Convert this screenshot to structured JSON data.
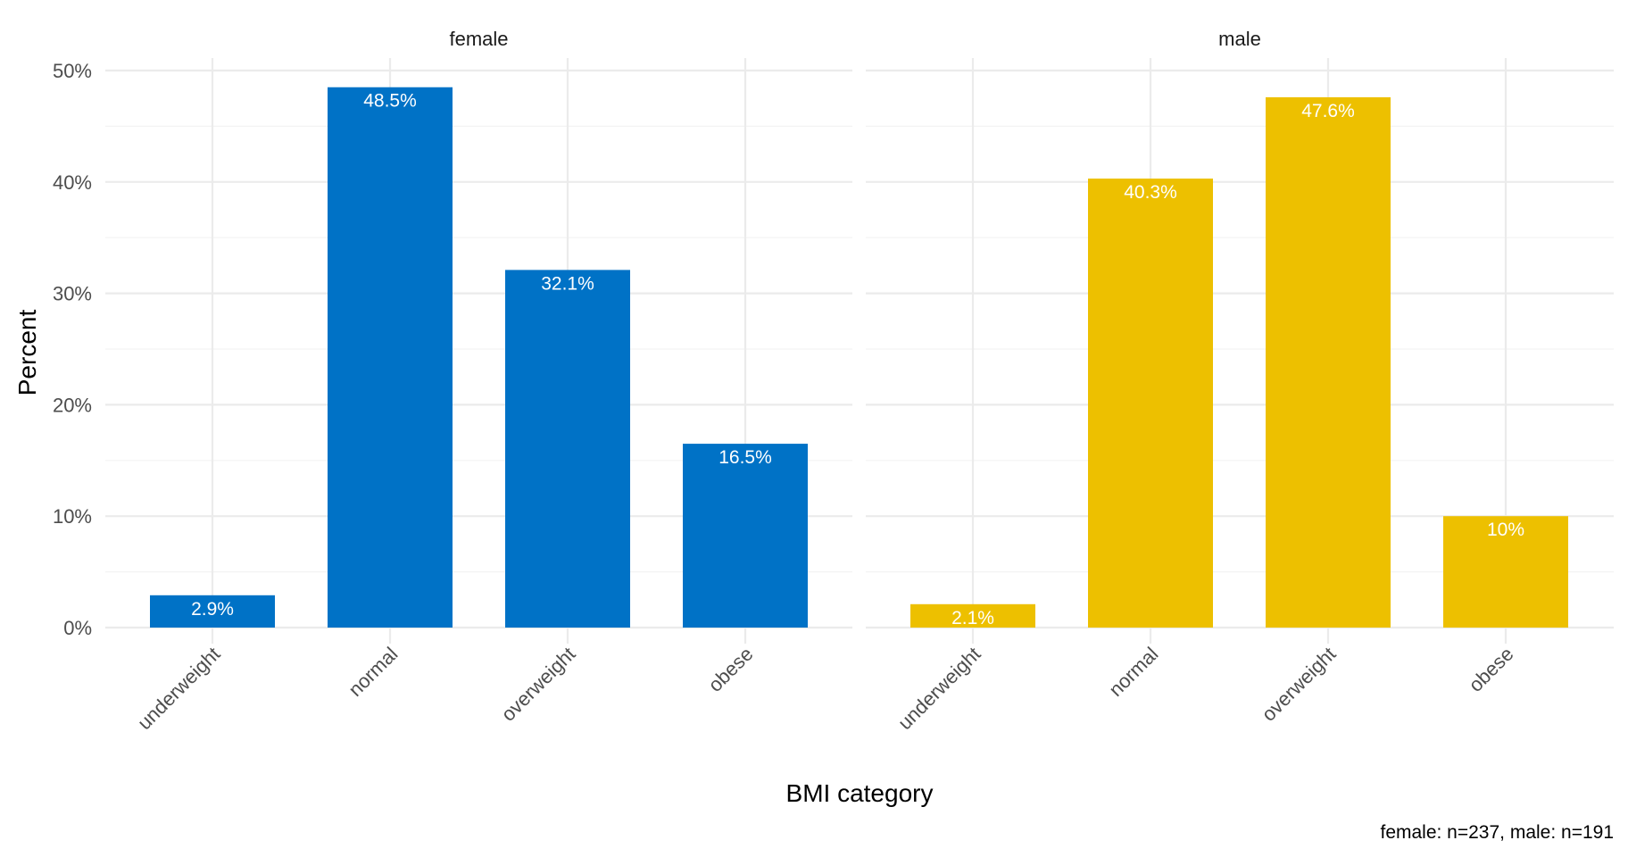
{
  "chart_data": {
    "type": "bar",
    "facets": [
      "female",
      "male"
    ],
    "categories": [
      "underweight",
      "normal",
      "overweight",
      "obese"
    ],
    "series": [
      {
        "facet": "female",
        "values": [
          2.9,
          48.5,
          32.1,
          16.5
        ],
        "labels": [
          "2.9%",
          "48.5%",
          "32.1%",
          "16.5%"
        ],
        "color": "#0072C6"
      },
      {
        "facet": "male",
        "values": [
          2.1,
          40.3,
          47.6,
          10
        ],
        "labels": [
          "2.1%",
          "40.3%",
          "47.6%",
          "10%"
        ],
        "color": "#EDC000"
      }
    ],
    "xlabel": "BMI category",
    "ylabel": "Percent",
    "ylim": [
      0,
      50
    ],
    "yticks": [
      0,
      10,
      20,
      30,
      40,
      50
    ],
    "ytick_labels": [
      "0%",
      "10%",
      "20%",
      "30%",
      "40%",
      "50%"
    ],
    "caption": "female: n=237, male: n=191",
    "grid": true,
    "legend": "none"
  }
}
